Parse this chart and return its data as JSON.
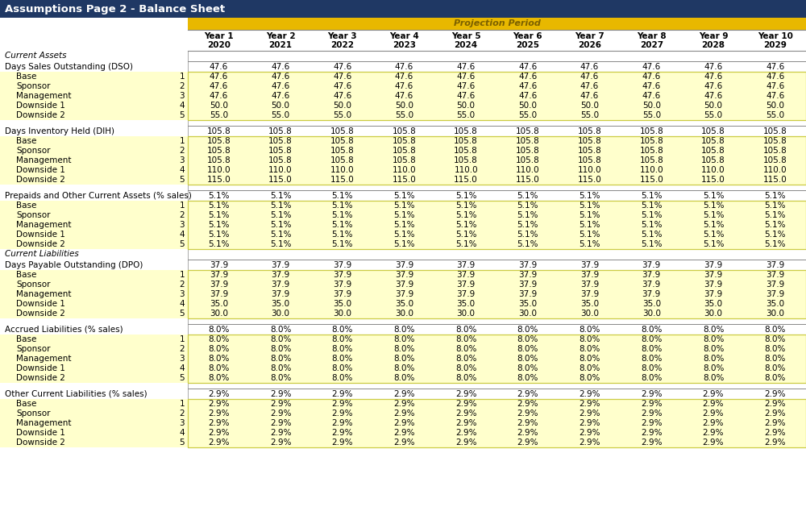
{
  "title": "Assumptions Page 2 - Balance Sheet",
  "title_bg": "#1F3864",
  "title_color": "#FFFFFF",
  "projection_label": "Projection Period",
  "projection_bg": "#E8B800",
  "yellow_bg": "#FFFFCC",
  "white_bg": "#FFFFFF",
  "years_line1": [
    "Year 1",
    "Year 2",
    "Year 3",
    "Year 4",
    "Year 5",
    "Year 6",
    "Year 7",
    "Year 8",
    "Year 9",
    "Year 10"
  ],
  "years_line2": [
    "2020",
    "2021",
    "2022",
    "2023",
    "2024",
    "2025",
    "2026",
    "2027",
    "2028",
    "2029"
  ],
  "sections": [
    {
      "section_header": "Current Assets",
      "rows": [
        {
          "label": "Days Sales Outstanding (DSO)",
          "num": "",
          "values": [
            "47.6",
            "47.6",
            "47.6",
            "47.6",
            "47.6",
            "47.6",
            "47.6",
            "47.6",
            "47.6",
            "47.6"
          ],
          "yellow": false
        },
        {
          "label": "Base",
          "num": "1",
          "values": [
            "47.6",
            "47.6",
            "47.6",
            "47.6",
            "47.6",
            "47.6",
            "47.6",
            "47.6",
            "47.6",
            "47.6"
          ],
          "yellow": true
        },
        {
          "label": "Sponsor",
          "num": "2",
          "values": [
            "47.6",
            "47.6",
            "47.6",
            "47.6",
            "47.6",
            "47.6",
            "47.6",
            "47.6",
            "47.6",
            "47.6"
          ],
          "yellow": true
        },
        {
          "label": "Management",
          "num": "3",
          "values": [
            "47.6",
            "47.6",
            "47.6",
            "47.6",
            "47.6",
            "47.6",
            "47.6",
            "47.6",
            "47.6",
            "47.6"
          ],
          "yellow": true
        },
        {
          "label": "Downside 1",
          "num": "4",
          "values": [
            "50.0",
            "50.0",
            "50.0",
            "50.0",
            "50.0",
            "50.0",
            "50.0",
            "50.0",
            "50.0",
            "50.0"
          ],
          "yellow": true
        },
        {
          "label": "Downside 2",
          "num": "5",
          "values": [
            "55.0",
            "55.0",
            "55.0",
            "55.0",
            "55.0",
            "55.0",
            "55.0",
            "55.0",
            "55.0",
            "55.0"
          ],
          "yellow": true
        }
      ]
    },
    {
      "section_header": null,
      "rows": [
        {
          "label": "Days Inventory Held (DIH)",
          "num": "",
          "values": [
            "105.8",
            "105.8",
            "105.8",
            "105.8",
            "105.8",
            "105.8",
            "105.8",
            "105.8",
            "105.8",
            "105.8"
          ],
          "yellow": false
        },
        {
          "label": "Base",
          "num": "1",
          "values": [
            "105.8",
            "105.8",
            "105.8",
            "105.8",
            "105.8",
            "105.8",
            "105.8",
            "105.8",
            "105.8",
            "105.8"
          ],
          "yellow": true
        },
        {
          "label": "Sponsor",
          "num": "2",
          "values": [
            "105.8",
            "105.8",
            "105.8",
            "105.8",
            "105.8",
            "105.8",
            "105.8",
            "105.8",
            "105.8",
            "105.8"
          ],
          "yellow": true
        },
        {
          "label": "Management",
          "num": "3",
          "values": [
            "105.8",
            "105.8",
            "105.8",
            "105.8",
            "105.8",
            "105.8",
            "105.8",
            "105.8",
            "105.8",
            "105.8"
          ],
          "yellow": true
        },
        {
          "label": "Downside 1",
          "num": "4",
          "values": [
            "110.0",
            "110.0",
            "110.0",
            "110.0",
            "110.0",
            "110.0",
            "110.0",
            "110.0",
            "110.0",
            "110.0"
          ],
          "yellow": true
        },
        {
          "label": "Downside 2",
          "num": "5",
          "values": [
            "115.0",
            "115.0",
            "115.0",
            "115.0",
            "115.0",
            "115.0",
            "115.0",
            "115.0",
            "115.0",
            "115.0"
          ],
          "yellow": true
        }
      ]
    },
    {
      "section_header": null,
      "rows": [
        {
          "label": "Prepaids and Other Current Assets (% sales)",
          "num": "",
          "values": [
            "5.1%",
            "5.1%",
            "5.1%",
            "5.1%",
            "5.1%",
            "5.1%",
            "5.1%",
            "5.1%",
            "5.1%",
            "5.1%"
          ],
          "yellow": false
        },
        {
          "label": "Base",
          "num": "1",
          "values": [
            "5.1%",
            "5.1%",
            "5.1%",
            "5.1%",
            "5.1%",
            "5.1%",
            "5.1%",
            "5.1%",
            "5.1%",
            "5.1%"
          ],
          "yellow": true
        },
        {
          "label": "Sponsor",
          "num": "2",
          "values": [
            "5.1%",
            "5.1%",
            "5.1%",
            "5.1%",
            "5.1%",
            "5.1%",
            "5.1%",
            "5.1%",
            "5.1%",
            "5.1%"
          ],
          "yellow": true
        },
        {
          "label": "Management",
          "num": "3",
          "values": [
            "5.1%",
            "5.1%",
            "5.1%",
            "5.1%",
            "5.1%",
            "5.1%",
            "5.1%",
            "5.1%",
            "5.1%",
            "5.1%"
          ],
          "yellow": true
        },
        {
          "label": "Downside 1",
          "num": "4",
          "values": [
            "5.1%",
            "5.1%",
            "5.1%",
            "5.1%",
            "5.1%",
            "5.1%",
            "5.1%",
            "5.1%",
            "5.1%",
            "5.1%"
          ],
          "yellow": true
        },
        {
          "label": "Downside 2",
          "num": "5",
          "values": [
            "5.1%",
            "5.1%",
            "5.1%",
            "5.1%",
            "5.1%",
            "5.1%",
            "5.1%",
            "5.1%",
            "5.1%",
            "5.1%"
          ],
          "yellow": true
        }
      ]
    },
    {
      "section_header": "Current Liabilities",
      "rows": [
        {
          "label": "Days Payable Outstanding (DPO)",
          "num": "",
          "values": [
            "37.9",
            "37.9",
            "37.9",
            "37.9",
            "37.9",
            "37.9",
            "37.9",
            "37.9",
            "37.9",
            "37.9"
          ],
          "yellow": false
        },
        {
          "label": "Base",
          "num": "1",
          "values": [
            "37.9",
            "37.9",
            "37.9",
            "37.9",
            "37.9",
            "37.9",
            "37.9",
            "37.9",
            "37.9",
            "37.9"
          ],
          "yellow": true
        },
        {
          "label": "Sponsor",
          "num": "2",
          "values": [
            "37.9",
            "37.9",
            "37.9",
            "37.9",
            "37.9",
            "37.9",
            "37.9",
            "37.9",
            "37.9",
            "37.9"
          ],
          "yellow": true
        },
        {
          "label": "Management",
          "num": "3",
          "values": [
            "37.9",
            "37.9",
            "37.9",
            "37.9",
            "37.9",
            "37.9",
            "37.9",
            "37.9",
            "37.9",
            "37.9"
          ],
          "yellow": true
        },
        {
          "label": "Downside 1",
          "num": "4",
          "values": [
            "35.0",
            "35.0",
            "35.0",
            "35.0",
            "35.0",
            "35.0",
            "35.0",
            "35.0",
            "35.0",
            "35.0"
          ],
          "yellow": true
        },
        {
          "label": "Downside 2",
          "num": "5",
          "values": [
            "30.0",
            "30.0",
            "30.0",
            "30.0",
            "30.0",
            "30.0",
            "30.0",
            "30.0",
            "30.0",
            "30.0"
          ],
          "yellow": true
        }
      ]
    },
    {
      "section_header": null,
      "rows": [
        {
          "label": "Accrued Liabilities (% sales)",
          "num": "",
          "values": [
            "8.0%",
            "8.0%",
            "8.0%",
            "8.0%",
            "8.0%",
            "8.0%",
            "8.0%",
            "8.0%",
            "8.0%",
            "8.0%"
          ],
          "yellow": false
        },
        {
          "label": "Base",
          "num": "1",
          "values": [
            "8.0%",
            "8.0%",
            "8.0%",
            "8.0%",
            "8.0%",
            "8.0%",
            "8.0%",
            "8.0%",
            "8.0%",
            "8.0%"
          ],
          "yellow": true
        },
        {
          "label": "Sponsor",
          "num": "2",
          "values": [
            "8.0%",
            "8.0%",
            "8.0%",
            "8.0%",
            "8.0%",
            "8.0%",
            "8.0%",
            "8.0%",
            "8.0%",
            "8.0%"
          ],
          "yellow": true
        },
        {
          "label": "Management",
          "num": "3",
          "values": [
            "8.0%",
            "8.0%",
            "8.0%",
            "8.0%",
            "8.0%",
            "8.0%",
            "8.0%",
            "8.0%",
            "8.0%",
            "8.0%"
          ],
          "yellow": true
        },
        {
          "label": "Downside 1",
          "num": "4",
          "values": [
            "8.0%",
            "8.0%",
            "8.0%",
            "8.0%",
            "8.0%",
            "8.0%",
            "8.0%",
            "8.0%",
            "8.0%",
            "8.0%"
          ],
          "yellow": true
        },
        {
          "label": "Downside 2",
          "num": "5",
          "values": [
            "8.0%",
            "8.0%",
            "8.0%",
            "8.0%",
            "8.0%",
            "8.0%",
            "8.0%",
            "8.0%",
            "8.0%",
            "8.0%"
          ],
          "yellow": true
        }
      ]
    },
    {
      "section_header": null,
      "rows": [
        {
          "label": "Other Current Liabilities (% sales)",
          "num": "",
          "values": [
            "2.9%",
            "2.9%",
            "2.9%",
            "2.9%",
            "2.9%",
            "2.9%",
            "2.9%",
            "2.9%",
            "2.9%",
            "2.9%"
          ],
          "yellow": false
        },
        {
          "label": "Base",
          "num": "1",
          "values": [
            "2.9%",
            "2.9%",
            "2.9%",
            "2.9%",
            "2.9%",
            "2.9%",
            "2.9%",
            "2.9%",
            "2.9%",
            "2.9%"
          ],
          "yellow": true
        },
        {
          "label": "Sponsor",
          "num": "2",
          "values": [
            "2.9%",
            "2.9%",
            "2.9%",
            "2.9%",
            "2.9%",
            "2.9%",
            "2.9%",
            "2.9%",
            "2.9%",
            "2.9%"
          ],
          "yellow": true
        },
        {
          "label": "Management",
          "num": "3",
          "values": [
            "2.9%",
            "2.9%",
            "2.9%",
            "2.9%",
            "2.9%",
            "2.9%",
            "2.9%",
            "2.9%",
            "2.9%",
            "2.9%"
          ],
          "yellow": true
        },
        {
          "label": "Downside 1",
          "num": "4",
          "values": [
            "2.9%",
            "2.9%",
            "2.9%",
            "2.9%",
            "2.9%",
            "2.9%",
            "2.9%",
            "2.9%",
            "2.9%",
            "2.9%"
          ],
          "yellow": true
        },
        {
          "label": "Downside 2",
          "num": "5",
          "values": [
            "2.9%",
            "2.9%",
            "2.9%",
            "2.9%",
            "2.9%",
            "2.9%",
            "2.9%",
            "2.9%",
            "2.9%",
            "2.9%"
          ],
          "yellow": true
        }
      ]
    }
  ]
}
